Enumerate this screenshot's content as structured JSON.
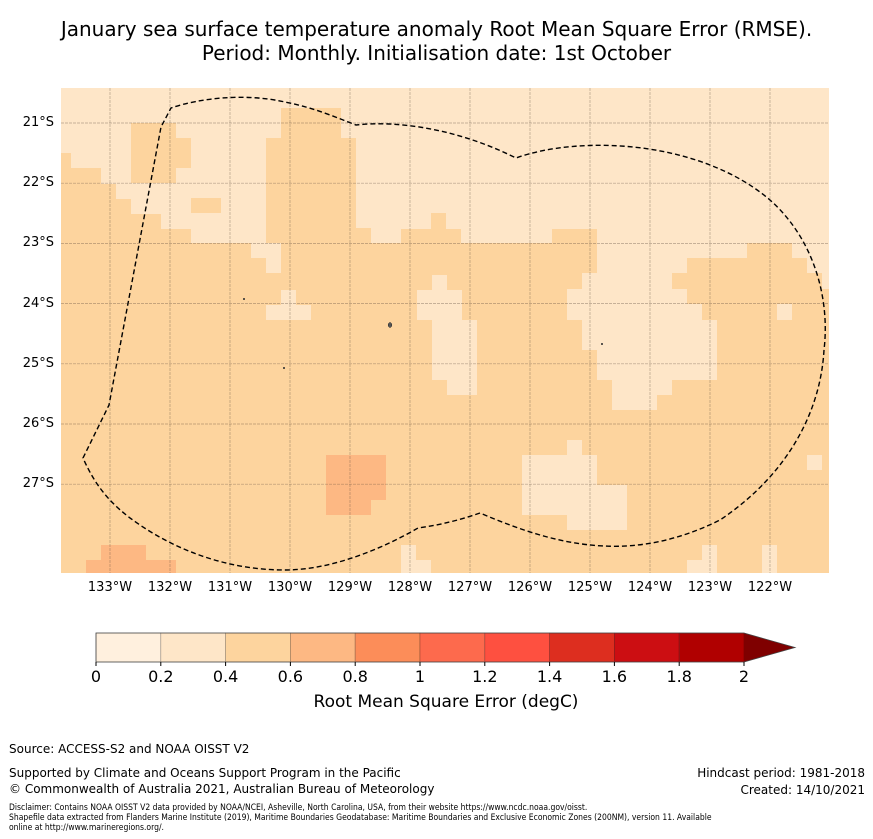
{
  "title": {
    "line1": "January sea surface temperature anomaly Root Mean Square Error (RMSE).",
    "line2": "Period: Monthly. Initialisation date: 1st October"
  },
  "map": {
    "lat_labels": [
      "21°S",
      "22°S",
      "23°S",
      "24°S",
      "25°S",
      "26°S",
      "27°S"
    ],
    "lon_labels": [
      "133°W",
      "132°W",
      "131°W",
      "130°W",
      "129°W",
      "128°W",
      "127°W",
      "126°W",
      "125°W",
      "124°W",
      "123°W",
      "122°W"
    ],
    "dominant_class": "0.4–0.6",
    "boundary": "EEZ dashed line"
  },
  "colorbar": {
    "ticks": [
      "0",
      "0.2",
      "0.4",
      "0.6",
      "0.8",
      "1",
      "1.2",
      "1.4",
      "1.6",
      "1.8",
      "2"
    ],
    "colors": [
      "#fff0de",
      "#fee6c8",
      "#fdd49e",
      "#fdb883",
      "#fc8d59",
      "#fd6a4d",
      "#fe5040",
      "#dd2e1f",
      "#cc0e12",
      "#b00000"
    ],
    "extend_color": "#7f0000",
    "label": "Root Mean Square Error (degC)"
  },
  "footer": {
    "source": "Source: ACCESS-S2 and NOAA OISST V2",
    "supported": "Supported by Climate and Oceans Support Program in the Pacific",
    "copyright": "© Commonwealth of Australia 2021, Australian Bureau of Meteorology",
    "hindcast": "Hindcast period: 1981-2018",
    "created": "Created: 14/10/2021",
    "disclaimer1": "Disclaimer: Contains NOAA OISST V2 data provided by NOAA/NCEI, Asheville, North Carolina, USA, from their website https://www.ncdc.noaa.gov/oisst.",
    "disclaimer2": "Shapefile data extracted from Flanders Marine Institute (2019), Maritime Boundaries Geodatabase: Maritime Boundaries and Exclusive Economic Zones (200NM), version 11. Available",
    "disclaimer3": "online at http://www.marineregions.org/."
  }
}
